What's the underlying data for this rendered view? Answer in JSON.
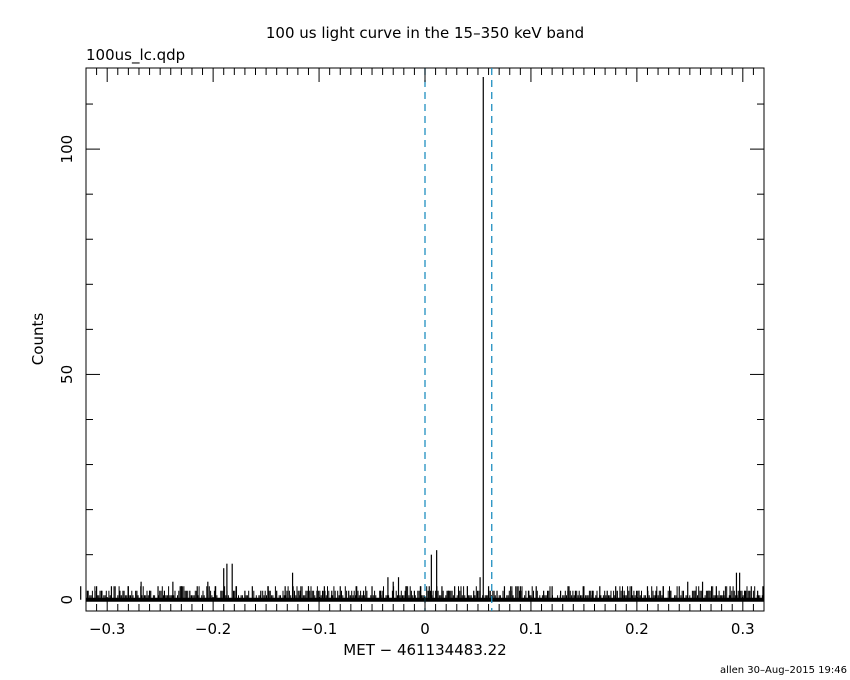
{
  "chart_data": {
    "type": "line",
    "title": "100 us light curve in the 15–350 keV band",
    "file_label": "100us_lc.qdp",
    "xlabel": "MET − 461134483.22",
    "ylabel": "Counts",
    "footer": "allen 30–Aug–2015 19:46",
    "xlim": [
      -0.32,
      0.32
    ],
    "ylim": [
      -2.5,
      118
    ],
    "x_ticks": [
      -0.3,
      -0.2,
      -0.1,
      0,
      0.1,
      0.2,
      0.3
    ],
    "x_tick_labels": [
      "−0.3",
      "−0.2",
      "−0.1",
      "0",
      "0.1",
      "0.2",
      "0.3"
    ],
    "y_ticks": [
      0,
      50,
      100
    ],
    "y_tick_labels": [
      "0",
      "50",
      "100"
    ],
    "line_color": "#000000",
    "marker_color": "#1f8fc0",
    "vertical_markers": [
      0.0,
      0.063
    ],
    "background_level": [
      0,
      3
    ],
    "spikes": [
      {
        "x": -0.325,
        "y": 3
      },
      {
        "x": -0.318,
        "y": 2
      },
      {
        "x": -0.31,
        "y": 3
      },
      {
        "x": -0.305,
        "y": 2
      },
      {
        "x": -0.296,
        "y": 3
      },
      {
        "x": -0.288,
        "y": 2
      },
      {
        "x": -0.28,
        "y": 3
      },
      {
        "x": -0.272,
        "y": 2
      },
      {
        "x": -0.268,
        "y": 4
      },
      {
        "x": -0.26,
        "y": 2
      },
      {
        "x": -0.252,
        "y": 3
      },
      {
        "x": -0.246,
        "y": 2
      },
      {
        "x": -0.238,
        "y": 4
      },
      {
        "x": -0.23,
        "y": 3
      },
      {
        "x": -0.222,
        "y": 2
      },
      {
        "x": -0.215,
        "y": 3
      },
      {
        "x": -0.205,
        "y": 4
      },
      {
        "x": -0.198,
        "y": 3
      },
      {
        "x": -0.19,
        "y": 7
      },
      {
        "x": -0.187,
        "y": 8
      },
      {
        "x": -0.182,
        "y": 8
      },
      {
        "x": -0.178,
        "y": 3
      },
      {
        "x": -0.17,
        "y": 2
      },
      {
        "x": -0.163,
        "y": 3
      },
      {
        "x": -0.155,
        "y": 2
      },
      {
        "x": -0.148,
        "y": 3
      },
      {
        "x": -0.14,
        "y": 2
      },
      {
        "x": -0.132,
        "y": 3
      },
      {
        "x": -0.125,
        "y": 6
      },
      {
        "x": -0.118,
        "y": 2
      },
      {
        "x": -0.11,
        "y": 3
      },
      {
        "x": -0.102,
        "y": 2
      },
      {
        "x": -0.095,
        "y": 3
      },
      {
        "x": -0.088,
        "y": 2
      },
      {
        "x": -0.08,
        "y": 3
      },
      {
        "x": -0.072,
        "y": 2
      },
      {
        "x": -0.065,
        "y": 3
      },
      {
        "x": -0.058,
        "y": 2
      },
      {
        "x": -0.05,
        "y": 3
      },
      {
        "x": -0.042,
        "y": 2
      },
      {
        "x": -0.035,
        "y": 5
      },
      {
        "x": -0.03,
        "y": 4
      },
      {
        "x": -0.025,
        "y": 5
      },
      {
        "x": -0.018,
        "y": 3
      },
      {
        "x": -0.01,
        "y": 2
      },
      {
        "x": -0.004,
        "y": 3
      },
      {
        "x": 0.004,
        "y": 3
      },
      {
        "x": 0.006,
        "y": 10
      },
      {
        "x": 0.011,
        "y": 11
      },
      {
        "x": 0.016,
        "y": 3
      },
      {
        "x": 0.022,
        "y": 2
      },
      {
        "x": 0.028,
        "y": 3
      },
      {
        "x": 0.034,
        "y": 2
      },
      {
        "x": 0.04,
        "y": 3
      },
      {
        "x": 0.046,
        "y": 2
      },
      {
        "x": 0.052,
        "y": 5
      },
      {
        "x": 0.055,
        "y": 116
      },
      {
        "x": 0.06,
        "y": 3
      },
      {
        "x": 0.068,
        "y": 2
      },
      {
        "x": 0.075,
        "y": 3
      },
      {
        "x": 0.082,
        "y": 2
      },
      {
        "x": 0.09,
        "y": 3
      },
      {
        "x": 0.098,
        "y": 2
      },
      {
        "x": 0.105,
        "y": 3
      },
      {
        "x": 0.112,
        "y": 2
      },
      {
        "x": 0.12,
        "y": 3
      },
      {
        "x": 0.128,
        "y": 2
      },
      {
        "x": 0.135,
        "y": 3
      },
      {
        "x": 0.142,
        "y": 2
      },
      {
        "x": 0.15,
        "y": 3
      },
      {
        "x": 0.158,
        "y": 2
      },
      {
        "x": 0.165,
        "y": 3
      },
      {
        "x": 0.172,
        "y": 2
      },
      {
        "x": 0.18,
        "y": 3
      },
      {
        "x": 0.188,
        "y": 2
      },
      {
        "x": 0.195,
        "y": 3
      },
      {
        "x": 0.202,
        "y": 2
      },
      {
        "x": 0.21,
        "y": 3
      },
      {
        "x": 0.218,
        "y": 2
      },
      {
        "x": 0.225,
        "y": 3
      },
      {
        "x": 0.232,
        "y": 2
      },
      {
        "x": 0.24,
        "y": 3
      },
      {
        "x": 0.248,
        "y": 4
      },
      {
        "x": 0.255,
        "y": 2
      },
      {
        "x": 0.262,
        "y": 4
      },
      {
        "x": 0.268,
        "y": 2
      },
      {
        "x": 0.275,
        "y": 3
      },
      {
        "x": 0.282,
        "y": 2
      },
      {
        "x": 0.288,
        "y": 3
      },
      {
        "x": 0.294,
        "y": 6
      },
      {
        "x": 0.297,
        "y": 6
      },
      {
        "x": 0.302,
        "y": 2
      },
      {
        "x": 0.308,
        "y": 3
      },
      {
        "x": 0.314,
        "y": 2
      },
      {
        "x": 0.319,
        "y": 3
      }
    ]
  }
}
